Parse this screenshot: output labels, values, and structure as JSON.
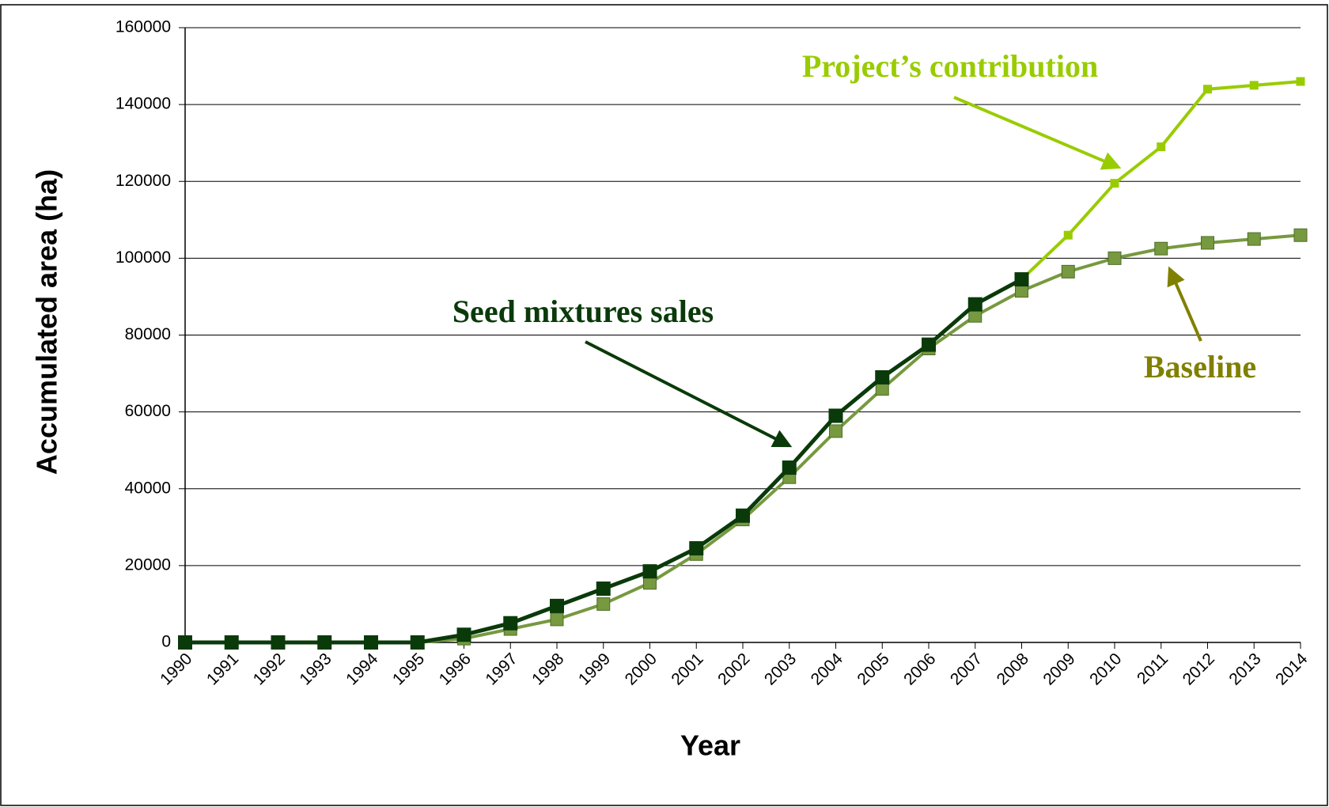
{
  "chart_data": {
    "type": "line",
    "x_label": "Year",
    "y_label": "Accumulated area (ha)",
    "categories": [
      "1990",
      "1991",
      "1992",
      "1993",
      "1994",
      "1995",
      "1996",
      "1997",
      "1998",
      "1999",
      "2000",
      "2001",
      "2002",
      "2003",
      "2004",
      "2005",
      "2006",
      "2007",
      "2008",
      "2009",
      "2010",
      "2011",
      "2012",
      "2013",
      "2014"
    ],
    "series": [
      {
        "name": "Project’s contribution",
        "color": "#99cc00",
        "values": [
          null,
          null,
          null,
          null,
          null,
          null,
          null,
          null,
          null,
          null,
          null,
          null,
          null,
          null,
          null,
          null,
          null,
          null,
          94500,
          106000,
          119500,
          129000,
          144000,
          145000,
          146000
        ]
      },
      {
        "name": "Baseline",
        "color": "#77993f",
        "values": [
          0,
          0,
          0,
          0,
          0,
          0,
          1000,
          3500,
          6000,
          10000,
          15500,
          23000,
          32000,
          43000,
          55000,
          66000,
          76500,
          85000,
          91500,
          96500,
          100000,
          102500,
          104000,
          105000,
          106000
        ]
      },
      {
        "name": "Seed mixtures sales",
        "color": "#0a3a0a",
        "values": [
          0,
          0,
          0,
          0,
          0,
          0,
          2000,
          5000,
          9500,
          14000,
          18500,
          24500,
          33000,
          45500,
          59000,
          69000,
          77500,
          88000,
          94500,
          null,
          null,
          null,
          null,
          null,
          null
        ]
      }
    ],
    "ylim": [
      0,
      160000
    ],
    "yticks": [
      0,
      20000,
      40000,
      60000,
      80000,
      100000,
      120000,
      140000,
      160000
    ],
    "grid": true
  }
}
